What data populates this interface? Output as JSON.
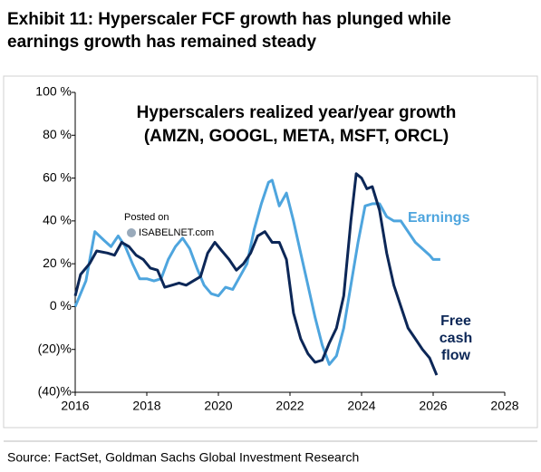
{
  "chart_data": {
    "type": "line",
    "title": [
      "Exhibit 11: Hyperscaler FCF growth has plunged while",
      "earnings growth has remained steady"
    ],
    "subtitle": [
      "Hyperscalers realized year/year growth",
      "(AMZN, GOOGL, META, MSFT, ORCL)"
    ],
    "watermark": [
      "Posted on",
      "ISABELNET.com"
    ],
    "source": "Source: FactSet, Goldman Sachs Global Investment Research",
    "xlim": [
      2016,
      2028
    ],
    "xticks": [
      2016,
      2018,
      2020,
      2022,
      2024,
      2026,
      2028
    ],
    "ylim": [
      -40,
      100
    ],
    "yticks": [
      {
        "value": -40,
        "label": "(40)%"
      },
      {
        "value": -20,
        "label": "(20)%"
      },
      {
        "value": 0,
        "label": "0 %"
      },
      {
        "value": 20,
        "label": "20 %"
      },
      {
        "value": 40,
        "label": "40 %"
      },
      {
        "value": 60,
        "label": "60 %"
      },
      {
        "value": 80,
        "label": "80 %"
      },
      {
        "value": 100,
        "label": "100 %"
      }
    ],
    "series": [
      {
        "name": "Earnings",
        "color": "#4ea5de",
        "x": [
          2016.0,
          2016.3,
          2016.55,
          2016.8,
          2017.0,
          2017.2,
          2017.4,
          2017.6,
          2017.8,
          2018.0,
          2018.2,
          2018.4,
          2018.6,
          2018.8,
          2019.0,
          2019.2,
          2019.4,
          2019.6,
          2019.8,
          2020.0,
          2020.2,
          2020.4,
          2020.6,
          2020.8,
          2021.0,
          2021.2,
          2021.4,
          2021.5,
          2021.7,
          2021.9,
          2022.1,
          2022.3,
          2022.5,
          2022.7,
          2022.9,
          2023.1,
          2023.3,
          2023.5,
          2023.7,
          2023.9,
          2024.1,
          2024.3,
          2024.5,
          2024.7,
          2024.9,
          2025.1,
          2025.3,
          2025.5,
          2025.7,
          2025.9,
          2026.0,
          2026.2
        ],
        "values": [
          0,
          12,
          35,
          31,
          28,
          33,
          28,
          20,
          13,
          13,
          12,
          13,
          22,
          28,
          32,
          27,
          18,
          10,
          6,
          5,
          9,
          8,
          14,
          20,
          36,
          48,
          58,
          59,
          47,
          53,
          40,
          25,
          10,
          -5,
          -18,
          -27,
          -23,
          -10,
          10,
          30,
          47,
          48,
          48,
          42,
          40,
          40,
          35,
          30,
          27,
          24,
          22,
          22
        ]
      },
      {
        "name": [
          "Free",
          "cash",
          "flow"
        ],
        "color": "#0c2757",
        "x": [
          2016.0,
          2016.15,
          2016.4,
          2016.6,
          2016.9,
          2017.1,
          2017.3,
          2017.5,
          2017.7,
          2017.9,
          2018.1,
          2018.3,
          2018.5,
          2018.7,
          2018.9,
          2019.1,
          2019.3,
          2019.5,
          2019.7,
          2019.9,
          2020.1,
          2020.3,
          2020.5,
          2020.7,
          2020.9,
          2021.1,
          2021.3,
          2021.5,
          2021.7,
          2021.9,
          2022.1,
          2022.3,
          2022.5,
          2022.7,
          2022.9,
          2023.1,
          2023.3,
          2023.5,
          2023.7,
          2023.85,
          2024.0,
          2024.15,
          2024.3,
          2024.5,
          2024.7,
          2024.9,
          2025.1,
          2025.3,
          2025.5,
          2025.7,
          2025.9,
          2026.1
        ],
        "values": [
          5,
          15,
          20,
          26,
          25,
          24,
          30,
          28,
          24,
          22,
          18,
          17,
          9,
          10,
          11,
          10,
          12,
          14,
          25,
          30,
          26,
          22,
          17,
          20,
          25,
          33,
          35,
          30,
          30,
          22,
          -3,
          -15,
          -22,
          -26,
          -25,
          -17,
          -10,
          5,
          40,
          62,
          60,
          55,
          56,
          45,
          25,
          10,
          0,
          -10,
          -15,
          -20,
          -24,
          -32
        ]
      }
    ]
  }
}
